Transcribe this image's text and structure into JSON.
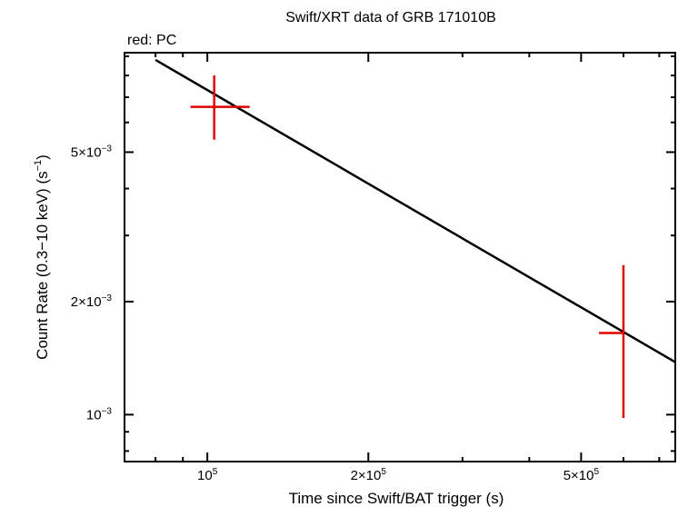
{
  "chart_data": {
    "type": "scatter",
    "title": "Swift/XRT data of GRB 171010B",
    "legend_text": "red: PC",
    "xlabel": "Time since Swift/BAT trigger (s)",
    "ylabel_parts": [
      "Count Rate (0.3−10 keV) (s",
      "−1",
      ")"
    ],
    "x_scale": "log",
    "y_scale": "log",
    "xlim": [
      70000,
      750000
    ],
    "ylim": [
      0.00075,
      0.0092
    ],
    "x_major_ticks": [
      {
        "value": 100000,
        "base": "10",
        "exp": "5"
      },
      {
        "value": 200000,
        "base": "2×10",
        "exp": "5"
      },
      {
        "value": 500000,
        "base": "5×10",
        "exp": "5"
      }
    ],
    "x_minor_ticks": [
      70000,
      80000,
      90000,
      300000,
      400000,
      600000,
      700000
    ],
    "y_major_ticks": [
      {
        "value": 0.001,
        "base": "10",
        "exp": "−3"
      },
      {
        "value": 0.002,
        "base": "2×10",
        "exp": "−3"
      },
      {
        "value": 0.005,
        "base": "5×10",
        "exp": "−3"
      }
    ],
    "y_minor_ticks": [
      0.0008,
      0.0009,
      0.003,
      0.004,
      0.006,
      0.007,
      0.008,
      0.009
    ],
    "grid": false,
    "series": [
      {
        "name": "PC",
        "color": "#e00000",
        "points": [
          {
            "x": 103000,
            "y": 0.0066,
            "x_lo": 93000,
            "x_hi": 120000,
            "y_lo": 0.0054,
            "y_hi": 0.008
          },
          {
            "x": 600000,
            "y": 0.00165,
            "x_lo": 540000,
            "x_hi": 600000,
            "y_lo": 0.00098,
            "y_hi": 0.0025
          }
        ]
      }
    ],
    "model_line": {
      "color": "#000000",
      "points": [
        {
          "x": 80000,
          "y": 0.0088
        },
        {
          "x": 750000,
          "y": 0.00138
        }
      ]
    }
  }
}
